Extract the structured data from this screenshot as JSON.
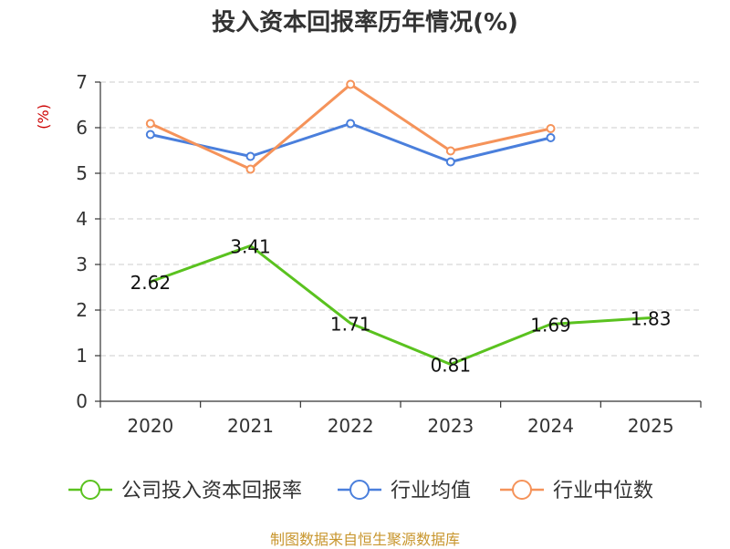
{
  "chart_data": {
    "type": "line",
    "title": "投入资本回报率历年情况(%)",
    "ylabel": "(%)",
    "xlabel": "",
    "categories": [
      "2020",
      "2021",
      "2022",
      "2023",
      "2024",
      "2025"
    ],
    "ylim": [
      0,
      7
    ],
    "yticks": [
      0,
      1,
      2,
      3,
      4,
      5,
      6,
      7
    ],
    "grid": true,
    "legend_position": "bottom",
    "series": [
      {
        "name": "公司投入资本回报率",
        "color": "#5ac21f",
        "values": [
          2.62,
          3.41,
          1.71,
          0.81,
          1.69,
          1.83
        ],
        "labels": [
          "2.62",
          "3.41",
          "1.71",
          "0.81",
          "1.69",
          "1.83"
        ]
      },
      {
        "name": "行业均值",
        "color": "#4a7fdc",
        "values": [
          5.85,
          5.37,
          6.09,
          5.25,
          5.78,
          null
        ]
      },
      {
        "name": "行业中位数",
        "color": "#f5935a",
        "values": [
          6.09,
          5.09,
          6.95,
          5.49,
          5.98,
          null
        ]
      }
    ]
  },
  "footer": {
    "source": "制图数据来自恒生聚源数据库"
  }
}
